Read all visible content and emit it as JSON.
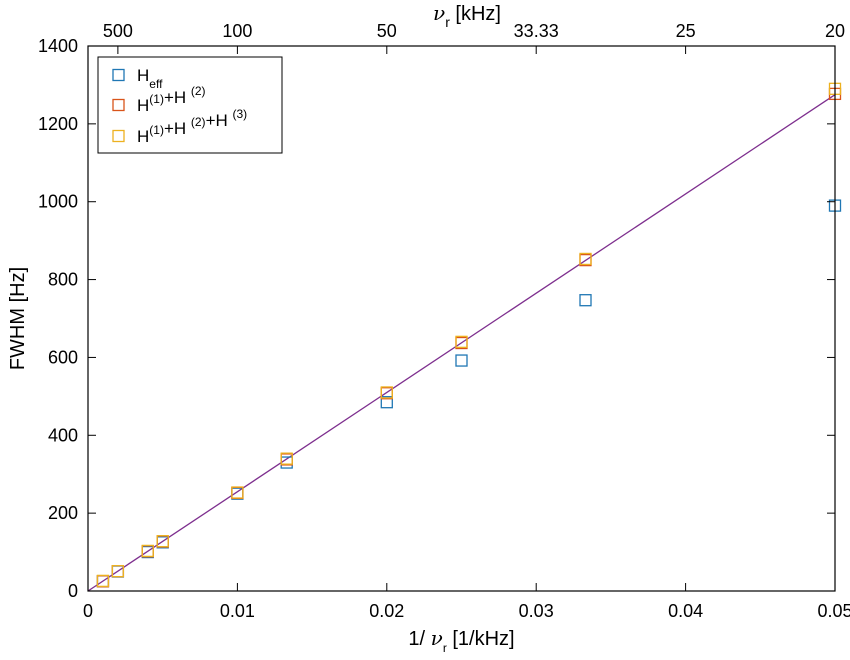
{
  "chart_data": {
    "type": "scatter",
    "xlabel": {
      "prefix": "1/ ",
      "symbol": "ν",
      "sub": "r",
      "suffix": " [1/kHz]"
    },
    "ylabel": "FWHM [Hz]",
    "x2label": {
      "symbol": "ν",
      "sub": "r",
      "suffix": " [kHz]"
    },
    "xlim": [
      0,
      0.05
    ],
    "ylim": [
      0,
      1400
    ],
    "xticks": [
      {
        "v": 0,
        "label": "0"
      },
      {
        "v": 0.01,
        "label": "0.01"
      },
      {
        "v": 0.02,
        "label": "0.02"
      },
      {
        "v": 0.03,
        "label": "0.03"
      },
      {
        "v": 0.04,
        "label": "0.04"
      },
      {
        "v": 0.05,
        "label": "0.05"
      }
    ],
    "yticks": [
      {
        "v": 0,
        "label": "0"
      },
      {
        "v": 200,
        "label": "200"
      },
      {
        "v": 400,
        "label": "400"
      },
      {
        "v": 600,
        "label": "600"
      },
      {
        "v": 800,
        "label": "800"
      },
      {
        "v": 1000,
        "label": "1000"
      },
      {
        "v": 1200,
        "label": "1200"
      },
      {
        "v": 1400,
        "label": "1400"
      }
    ],
    "x2ticks": [
      {
        "v": 0.002,
        "label": "500"
      },
      {
        "v": 0.01,
        "label": "100"
      },
      {
        "v": 0.02,
        "label": "50"
      },
      {
        "v": 0.03,
        "label": "33.33"
      },
      {
        "v": 0.04,
        "label": "25"
      },
      {
        "v": 0.05,
        "label": "20"
      }
    ],
    "legend_position": "top-left",
    "grid": false,
    "series": [
      {
        "legend": [
          {
            "t": "H"
          },
          {
            "t": "eff",
            "sub": true
          }
        ],
        "color": "#1f77b4",
        "marker": "square-open",
        "points": [
          [
            0.001,
            25
          ],
          [
            0.002,
            50
          ],
          [
            0.004,
            100
          ],
          [
            0.005,
            125
          ],
          [
            0.01,
            250
          ],
          [
            0.0133,
            330
          ],
          [
            0.02,
            485
          ],
          [
            0.025,
            592
          ],
          [
            0.0333,
            747
          ],
          [
            0.05,
            990
          ]
        ]
      },
      {
        "legend": [
          {
            "t": "H"
          },
          {
            "t": "(1)",
            "sup": true
          },
          {
            "t": "+H "
          },
          {
            "t": "(2)",
            "sup": true
          }
        ],
        "color": "#d9541a",
        "marker": "square-open",
        "points": [
          [
            0.001,
            25
          ],
          [
            0.002,
            51
          ],
          [
            0.004,
            102
          ],
          [
            0.005,
            127
          ],
          [
            0.01,
            252
          ],
          [
            0.0133,
            338
          ],
          [
            0.02,
            508
          ],
          [
            0.025,
            637
          ],
          [
            0.0333,
            850
          ],
          [
            0.05,
            1277
          ]
        ]
      },
      {
        "legend": [
          {
            "t": "H"
          },
          {
            "t": "(1)",
            "sup": true
          },
          {
            "t": "+H "
          },
          {
            "t": "(2)",
            "sup": true
          },
          {
            "t": "+H "
          },
          {
            "t": "(3)",
            "sup": true
          }
        ],
        "color": "#edb120",
        "marker": "square-open",
        "points": [
          [
            0.001,
            26
          ],
          [
            0.002,
            51
          ],
          [
            0.004,
            103
          ],
          [
            0.005,
            128
          ],
          [
            0.01,
            253
          ],
          [
            0.0133,
            340
          ],
          [
            0.02,
            510
          ],
          [
            0.025,
            640
          ],
          [
            0.0333,
            853
          ],
          [
            0.05,
            1290
          ]
        ]
      }
    ],
    "fit_line": {
      "color": "#7e2f8e",
      "x": [
        0,
        0.05
      ],
      "y": [
        0,
        1275
      ]
    }
  }
}
